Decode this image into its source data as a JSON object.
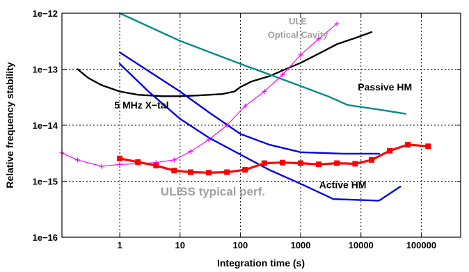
{
  "chart_data": {
    "type": "line",
    "xlabel": "Integration time (s)",
    "ylabel": "Relative frequency stability",
    "x_scale": "log",
    "y_scale": "log",
    "xlim": [
      0.11,
      450000
    ],
    "ylim": [
      1e-16,
      1e-12
    ],
    "x_ticks": [
      {
        "value": 1,
        "label": "1"
      },
      {
        "value": 10,
        "label": "10"
      },
      {
        "value": 100,
        "label": "100"
      },
      {
        "value": 1000,
        "label": "1000"
      },
      {
        "value": 10000,
        "label": "10000"
      },
      {
        "value": 100000,
        "label": "100000"
      }
    ],
    "y_ticks": [
      {
        "value": 1e-12,
        "label": "1e−12"
      },
      {
        "value": 1e-13,
        "label": "1e−13"
      },
      {
        "value": 1e-14,
        "label": "1e−14"
      },
      {
        "value": 1e-15,
        "label": "1e−15"
      },
      {
        "value": 1e-16,
        "label": "1e−16"
      }
    ],
    "grid": true,
    "series": [
      {
        "color": "#000000",
        "marker": "none",
        "points": [
          [
            0.2,
            1e-13
          ],
          [
            0.3,
            7e-14
          ],
          [
            0.5,
            5.2e-14
          ],
          [
            1,
            4e-14
          ],
          [
            2,
            3.5e-14
          ],
          [
            5,
            3.3e-14
          ],
          [
            10,
            3.3e-14
          ],
          [
            20,
            3.4e-14
          ],
          [
            50,
            3.6e-14
          ],
          [
            80,
            4e-14
          ],
          [
            100,
            4.8e-14
          ],
          [
            150,
            6e-14
          ],
          [
            300,
            7.5e-14
          ],
          [
            500,
            9.5e-14
          ],
          [
            1000,
            1.3e-13
          ],
          [
            2000,
            1.9e-13
          ],
          [
            4000,
            2.8e-13
          ],
          [
            8000,
            3.6e-13
          ],
          [
            15000,
            4.6e-13
          ]
        ]
      },
      {
        "color": "#008b8b",
        "marker": "none",
        "points": [
          [
            1,
            1e-12
          ],
          [
            10,
            3.2e-13
          ],
          [
            100,
            1.25e-13
          ],
          [
            1000,
            5e-14
          ],
          [
            3000,
            3.2e-14
          ],
          [
            6000,
            2.3e-14
          ],
          [
            20000,
            1.9e-14
          ],
          [
            55000,
            1.6e-14
          ]
        ]
      },
      {
        "color": "#ff00ff",
        "marker": "plus",
        "points": [
          [
            0.11,
            3.2e-15
          ],
          [
            0.2,
            2.4e-15
          ],
          [
            0.5,
            1.85e-15
          ],
          [
            1,
            2e-15
          ],
          [
            2,
            2.05e-15
          ],
          [
            4,
            2.15e-15
          ],
          [
            8,
            2.4e-15
          ],
          [
            15,
            3.4e-15
          ],
          [
            30,
            5.5e-15
          ],
          [
            60,
            1e-14
          ],
          [
            120,
            2.2e-14
          ],
          [
            250,
            4e-14
          ],
          [
            500,
            8e-14
          ],
          [
            1000,
            1.8e-13
          ],
          [
            2000,
            3.5e-13
          ],
          [
            4000,
            6.5e-13
          ]
        ]
      },
      {
        "color": "#0000ee",
        "marker": "none",
        "points": [
          [
            1,
            2e-13
          ],
          [
            10,
            4e-14
          ],
          [
            30,
            1.7e-14
          ],
          [
            100,
            7e-15
          ],
          [
            300,
            4.5e-15
          ],
          [
            1000,
            3.3e-15
          ],
          [
            5000,
            3.1e-15
          ],
          [
            20000,
            3.1e-15
          ]
        ]
      },
      {
        "color": "#0000ee",
        "marker": "none",
        "points": [
          [
            1,
            1.25e-13
          ],
          [
            3,
            4e-14
          ],
          [
            10,
            1.3e-14
          ],
          [
            30,
            6e-15
          ],
          [
            100,
            3e-15
          ],
          [
            300,
            1.6e-15
          ],
          [
            1000,
            9e-16
          ],
          [
            3500,
            4.8e-16
          ],
          [
            20000,
            4.5e-16
          ],
          [
            45000,
            8e-16
          ]
        ]
      },
      {
        "color": "#ff0000",
        "marker": "square",
        "points": [
          [
            1,
            2.55e-15
          ],
          [
            2,
            2.2e-15
          ],
          [
            4,
            1.9e-15
          ],
          [
            8,
            1.55e-15
          ],
          [
            15,
            1.45e-15
          ],
          [
            30,
            1.42e-15
          ],
          [
            60,
            1.45e-15
          ],
          [
            120,
            1.6e-15
          ],
          [
            250,
            2.1e-15
          ],
          [
            500,
            2.15e-15
          ],
          [
            1000,
            2.1e-15
          ],
          [
            2000,
            2e-15
          ],
          [
            4000,
            2.1e-15
          ],
          [
            8000,
            2.05e-15
          ],
          [
            15000,
            2.4e-15
          ],
          [
            30000,
            3.5e-15
          ],
          [
            60000,
            4.5e-15
          ],
          [
            130000,
            4.2e-15
          ]
        ]
      }
    ],
    "annotations": [
      {
        "text": "ULE",
        "x": 900,
        "y": 6.3e-13,
        "color": "#a0a0a0",
        "size": 13,
        "serif": true
      },
      {
        "text": "Optical Cavity",
        "x": 900,
        "y": 3.6e-13,
        "color": "#a0a0a0",
        "size": 13,
        "serif": true
      },
      {
        "text": "Passive HM",
        "x": 25000,
        "y": 4.2e-14,
        "color": "#000000",
        "size": 14,
        "serif": false
      },
      {
        "text": "5 MHz X−tal",
        "x": 2.3,
        "y": 2e-14,
        "color": "#000000",
        "size": 14,
        "serif": false
      },
      {
        "text": "Active HM",
        "x": 5000,
        "y": 7.5e-16,
        "color": "#000000",
        "size": 14,
        "serif": false
      },
      {
        "text": "ULISS typical perf.",
        "x": 35,
        "y": 5.6e-16,
        "color": "#a0a0a0",
        "size": 17,
        "serif": false
      }
    ]
  }
}
